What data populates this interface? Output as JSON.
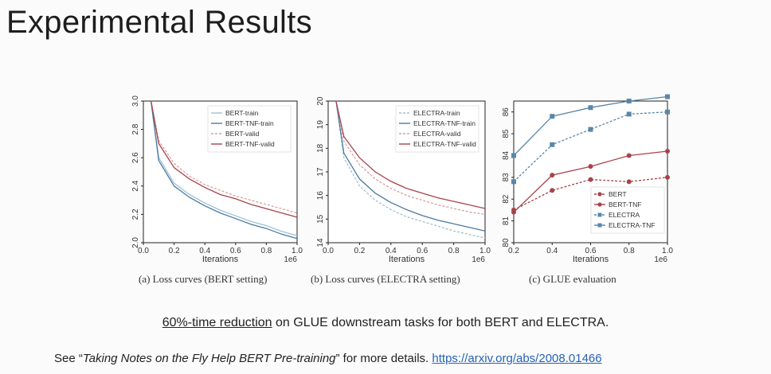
{
  "slide": {
    "title": "Experimental Results",
    "statement": {
      "highlight": "60%-time reduction",
      "rest": " on GLUE downstream tasks for both BERT and ELECTRA."
    },
    "footer": {
      "prefix": "See “",
      "paper": "Taking Notes on the Fly Help BERT Pre-training",
      "suffix": "” for more details.",
      "link": "https://arxiv.org/abs/2008.01466"
    }
  },
  "colors": {
    "blue": "#5a87a8",
    "red": "#a7434b",
    "lightblue": "#8eb4c8",
    "darkblue": "#456f93"
  },
  "chart_data": [
    {
      "type": "line",
      "caption": "(a) Loss curves (BERT setting)",
      "xlabel": "Iterations",
      "x_multiplier": "1e6",
      "xlim": [
        0,
        1.0
      ],
      "ylim": [
        2.0,
        3.0
      ],
      "xticks": [
        "0.0",
        "0.2",
        "0.4",
        "0.6",
        "0.8",
        "1.0"
      ],
      "yticks": [
        "2.0",
        "2.2",
        "2.4",
        "2.6",
        "2.8",
        "3.0"
      ],
      "legend_position": "top-right",
      "x": [
        0.05,
        0.1,
        0.2,
        0.3,
        0.4,
        0.5,
        0.6,
        0.7,
        0.8,
        0.9,
        1.0
      ],
      "series": [
        {
          "name": "BERT-train",
          "style": "solid",
          "color": "#9fc0d3",
          "values": [
            3.0,
            2.6,
            2.42,
            2.34,
            2.28,
            2.23,
            2.19,
            2.15,
            2.12,
            2.08,
            2.05
          ]
        },
        {
          "name": "BERT-TNF-train",
          "style": "solid",
          "color": "#4a7aa0",
          "values": [
            3.0,
            2.58,
            2.4,
            2.32,
            2.26,
            2.21,
            2.17,
            2.13,
            2.1,
            2.06,
            2.03
          ]
        },
        {
          "name": "BERT-valid",
          "style": "dashed",
          "color": "#d7a0a4",
          "values": [
            3.0,
            2.72,
            2.56,
            2.47,
            2.41,
            2.37,
            2.33,
            2.3,
            2.27,
            2.24,
            2.21
          ]
        },
        {
          "name": "BERT-TNF-valid",
          "style": "solid",
          "color": "#a7434b",
          "values": [
            3.0,
            2.7,
            2.53,
            2.45,
            2.39,
            2.34,
            2.31,
            2.27,
            2.24,
            2.21,
            2.18
          ]
        }
      ]
    },
    {
      "type": "line",
      "caption": "(b) Loss curves (ELECTRA setting)",
      "xlabel": "Iterations",
      "x_multiplier": "1e6",
      "xlim": [
        0,
        1.0
      ],
      "ylim": [
        14,
        20
      ],
      "xticks": [
        "0.0",
        "0.2",
        "0.4",
        "0.6",
        "0.8",
        "1.0"
      ],
      "yticks": [
        "14",
        "15",
        "16",
        "17",
        "18",
        "19",
        "20"
      ],
      "legend_position": "top-right",
      "x": [
        0.05,
        0.1,
        0.2,
        0.3,
        0.4,
        0.5,
        0.6,
        0.7,
        0.8,
        0.9,
        1.0
      ],
      "series": [
        {
          "name": "ELECTRA-train",
          "style": "dashed",
          "color": "#9fc0d3",
          "values": [
            20,
            17.6,
            16.4,
            15.8,
            15.4,
            15.1,
            14.9,
            14.7,
            14.5,
            14.35,
            14.2
          ]
        },
        {
          "name": "ELECTRA-TNF-train",
          "style": "solid",
          "color": "#4a7aa0",
          "values": [
            20,
            17.8,
            16.7,
            16.1,
            15.7,
            15.4,
            15.15,
            14.95,
            14.8,
            14.65,
            14.5
          ]
        },
        {
          "name": "ELECTRA-valid",
          "style": "dashed",
          "color": "#d7a0a4",
          "values": [
            20,
            18.3,
            17.3,
            16.7,
            16.3,
            16.0,
            15.8,
            15.6,
            15.45,
            15.3,
            15.2
          ]
        },
        {
          "name": "ELECTRA-TNF-valid",
          "style": "solid",
          "color": "#a7434b",
          "values": [
            20,
            18.5,
            17.6,
            17.0,
            16.6,
            16.3,
            16.1,
            15.9,
            15.75,
            15.6,
            15.45
          ]
        }
      ]
    },
    {
      "type": "line",
      "caption": "(c) GLUE evaluation",
      "xlabel": "Iterations",
      "x_multiplier": "1e6",
      "xlim": [
        0.2,
        1.0
      ],
      "ylim": [
        80,
        86.5
      ],
      "xticks": [
        "0.2",
        "0.4",
        "0.6",
        "0.8",
        "1.0"
      ],
      "yticks": [
        "80",
        "81",
        "82",
        "83",
        "84",
        "85",
        "86"
      ],
      "legend_position": "bottom-right",
      "x": [
        0.2,
        0.4,
        0.6,
        0.8,
        1.0
      ],
      "series": [
        {
          "name": "BERT",
          "style": "dashed",
          "marker": "circle",
          "color": "#a7434b",
          "values": [
            81.5,
            82.4,
            82.9,
            82.8,
            83.0
          ]
        },
        {
          "name": "BERT-TNF",
          "style": "solid",
          "marker": "circle",
          "color": "#a7434b",
          "values": [
            81.4,
            83.1,
            83.5,
            84.0,
            84.2
          ]
        },
        {
          "name": "ELECTRA",
          "style": "dashed",
          "marker": "square",
          "color": "#5a87a8",
          "values": [
            82.8,
            84.5,
            85.2,
            85.9,
            86.0
          ]
        },
        {
          "name": "ELECTRA-TNF",
          "style": "solid",
          "marker": "square",
          "color": "#5a87a8",
          "values": [
            84.0,
            85.8,
            86.2,
            86.5,
            86.7
          ]
        }
      ]
    }
  ]
}
